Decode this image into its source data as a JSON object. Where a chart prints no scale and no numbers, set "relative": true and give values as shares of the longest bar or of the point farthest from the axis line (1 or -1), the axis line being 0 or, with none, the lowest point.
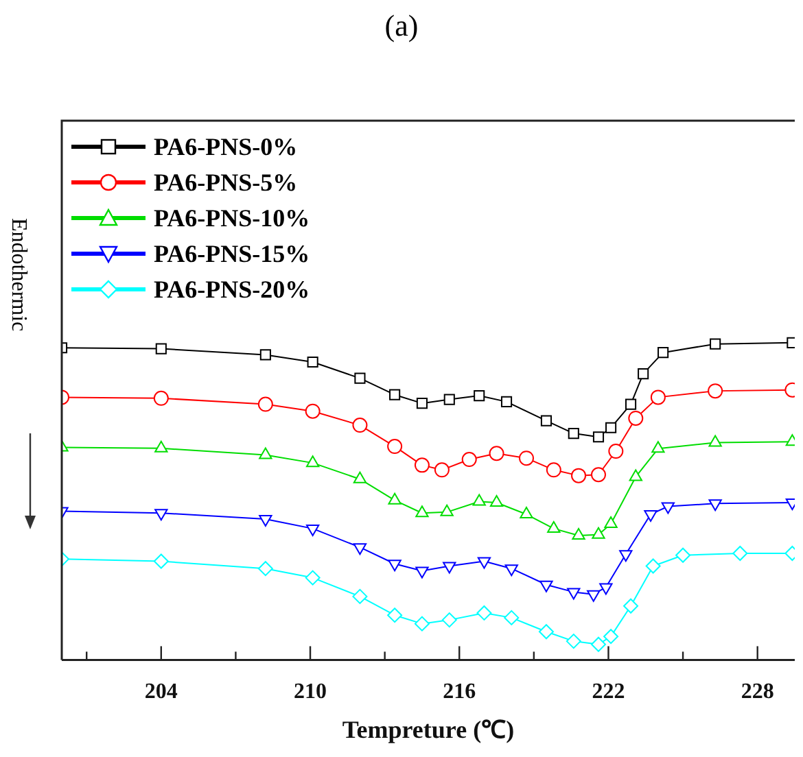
{
  "chart_data": {
    "type": "line",
    "title": "(a)",
    "xlabel": "Tempreture (℃)",
    "ylabel": "Endothermic",
    "relative": true,
    "legend": "top left",
    "line_style": "solid",
    "grid": false,
    "x": [
      200.0,
      204.0,
      208.2,
      210.1,
      212.0,
      213.4,
      214.5,
      215.6,
      216.8,
      217.9,
      219.5,
      220.6,
      221.6,
      222.1,
      222.9,
      223.4,
      224.2,
      226.3,
      229.4
    ],
    "xlim": [
      200,
      229.5
    ],
    "xticks": [
      {
        "value": 201,
        "label": null
      },
      204,
      {
        "value": 207,
        "label": null
      },
      210,
      {
        "value": 213,
        "label": null
      },
      216,
      {
        "value": 219,
        "label": null
      },
      222,
      {
        "value": 225,
        "label": null
      },
      228
    ],
    "series": [
      {
        "name": "PA6-PNS-0%",
        "color": "#000000",
        "marker": "square",
        "values": [
          0.984,
          0.981,
          0.962,
          0.939,
          0.888,
          0.836,
          0.809,
          0.821,
          0.833,
          0.814,
          0.754,
          0.714,
          0.703,
          0.732,
          0.806,
          0.902,
          0.969,
          0.996,
          1.0
        ]
      },
      {
        "name": "PA6-PNS-5%",
        "color": "#ff0000",
        "marker": "circle",
        "x": [
          200.0,
          204.0,
          208.2,
          210.1,
          212.0,
          213.4,
          214.5,
          215.3,
          216.4,
          217.5,
          218.7,
          219.8,
          220.8,
          221.6,
          222.3,
          223.1,
          224.0,
          226.3,
          229.4
        ],
        "values": [
          0.828,
          0.825,
          0.806,
          0.784,
          0.74,
          0.673,
          0.614,
          0.599,
          0.632,
          0.651,
          0.636,
          0.599,
          0.581,
          0.584,
          0.658,
          0.762,
          0.828,
          0.848,
          0.851
        ]
      },
      {
        "name": "PA6-PNS-10%",
        "color": "#00dd00",
        "marker": "triangle",
        "x": [
          200.0,
          204.0,
          208.2,
          210.1,
          212.0,
          213.4,
          214.5,
          215.5,
          216.8,
          217.5,
          218.7,
          219.8,
          220.8,
          221.6,
          222.1,
          223.1,
          224.0,
          226.3,
          229.4
        ],
        "values": [
          0.67,
          0.667,
          0.646,
          0.621,
          0.57,
          0.503,
          0.463,
          0.466,
          0.499,
          0.496,
          0.459,
          0.414,
          0.392,
          0.395,
          0.429,
          0.577,
          0.666,
          0.685,
          0.688
        ]
      },
      {
        "name": "PA6-PNS-15%",
        "color": "#0000ff",
        "marker": "triangle-down",
        "x": [
          200.0,
          204.0,
          208.2,
          210.1,
          212.0,
          213.4,
          214.5,
          215.6,
          217.0,
          218.1,
          219.5,
          220.6,
          221.4,
          221.9,
          222.7,
          223.7,
          224.4,
          226.3,
          229.4
        ],
        "values": [
          0.469,
          0.463,
          0.444,
          0.414,
          0.355,
          0.303,
          0.281,
          0.296,
          0.311,
          0.288,
          0.237,
          0.214,
          0.207,
          0.229,
          0.333,
          0.459,
          0.484,
          0.493,
          0.496
        ]
      },
      {
        "name": "PA6-PNS-20%",
        "color": "#00ffff",
        "marker": "diamond",
        "x": [
          200.0,
          204.0,
          208.2,
          210.1,
          212.0,
          213.4,
          214.5,
          215.6,
          217.0,
          218.1,
          219.5,
          220.6,
          221.6,
          222.1,
          222.9,
          223.8,
          225.0,
          227.3,
          229.4
        ],
        "values": [
          0.318,
          0.311,
          0.288,
          0.259,
          0.2,
          0.141,
          0.114,
          0.126,
          0.148,
          0.133,
          0.089,
          0.059,
          0.049,
          0.074,
          0.17,
          0.296,
          0.33,
          0.336,
          0.336
        ]
      }
    ]
  }
}
